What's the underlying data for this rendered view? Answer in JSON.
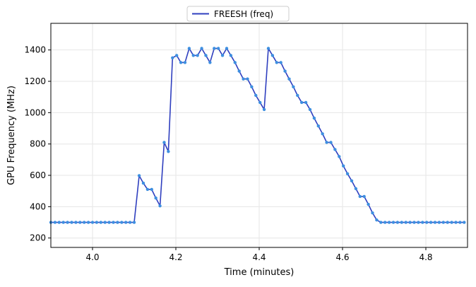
{
  "chart_data": {
    "type": "line",
    "title": "",
    "xlabel": "Time (minutes)",
    "ylabel": "GPU Frequency (MHz)",
    "xlim": [
      3.9,
      4.9
    ],
    "ylim": [
      140,
      1570
    ],
    "xticks": [
      4.0,
      4.2,
      4.4,
      4.6,
      4.8
    ],
    "xtick_labels": [
      "4.0",
      "4.2",
      "4.4",
      "4.6",
      "4.8"
    ],
    "yticks": [
      200,
      400,
      600,
      800,
      1000,
      1200,
      1400
    ],
    "ytick_labels": [
      "200",
      "400",
      "600",
      "800",
      "1000",
      "1200",
      "1400"
    ],
    "grid": true,
    "legend_position": "top-center",
    "colors": {
      "line": "#2f3fbf",
      "marker": "#3d8fe0"
    },
    "series": [
      {
        "name": "FREESH (freq)",
        "points": [
          [
            3.9,
            300
          ],
          [
            3.91,
            300
          ],
          [
            3.92,
            300
          ],
          [
            3.93,
            300
          ],
          [
            3.94,
            300
          ],
          [
            3.95,
            300
          ],
          [
            3.96,
            300
          ],
          [
            3.97,
            300
          ],
          [
            3.98,
            300
          ],
          [
            3.99,
            300
          ],
          [
            4.0,
            300
          ],
          [
            4.01,
            300
          ],
          [
            4.02,
            300
          ],
          [
            4.03,
            300
          ],
          [
            4.04,
            300
          ],
          [
            4.05,
            300
          ],
          [
            4.06,
            300
          ],
          [
            4.07,
            300
          ],
          [
            4.08,
            300
          ],
          [
            4.09,
            300
          ],
          [
            4.1,
            300
          ],
          [
            4.112,
            598
          ],
          [
            4.122,
            550
          ],
          [
            4.132,
            510
          ],
          [
            4.142,
            510
          ],
          [
            4.152,
            455
          ],
          [
            4.162,
            405
          ],
          [
            4.172,
            810
          ],
          [
            4.182,
            752
          ],
          [
            4.192,
            1350
          ],
          [
            4.202,
            1365
          ],
          [
            4.212,
            1320
          ],
          [
            4.222,
            1320
          ],
          [
            4.232,
            1410
          ],
          [
            4.242,
            1365
          ],
          [
            4.252,
            1365
          ],
          [
            4.262,
            1410
          ],
          [
            4.272,
            1365
          ],
          [
            4.282,
            1320
          ],
          [
            4.292,
            1410
          ],
          [
            4.302,
            1410
          ],
          [
            4.312,
            1365
          ],
          [
            4.322,
            1410
          ],
          [
            4.332,
            1365
          ],
          [
            4.342,
            1320
          ],
          [
            4.352,
            1265
          ],
          [
            4.362,
            1215
          ],
          [
            4.372,
            1215
          ],
          [
            4.382,
            1165
          ],
          [
            4.392,
            1110
          ],
          [
            4.402,
            1065
          ],
          [
            4.412,
            1020
          ],
          [
            4.422,
            1410
          ],
          [
            4.432,
            1365
          ],
          [
            4.442,
            1320
          ],
          [
            4.452,
            1320
          ],
          [
            4.462,
            1265
          ],
          [
            4.472,
            1215
          ],
          [
            4.482,
            1165
          ],
          [
            4.492,
            1110
          ],
          [
            4.502,
            1065
          ],
          [
            4.512,
            1065
          ],
          [
            4.522,
            1020
          ],
          [
            4.532,
            965
          ],
          [
            4.542,
            915
          ],
          [
            4.552,
            865
          ],
          [
            4.562,
            810
          ],
          [
            4.572,
            810
          ],
          [
            4.582,
            765
          ],
          [
            4.592,
            720
          ],
          [
            4.602,
            660
          ],
          [
            4.612,
            610
          ],
          [
            4.622,
            565
          ],
          [
            4.632,
            515
          ],
          [
            4.642,
            465
          ],
          [
            4.652,
            465
          ],
          [
            4.662,
            415
          ],
          [
            4.672,
            360
          ],
          [
            4.682,
            315
          ],
          [
            4.692,
            300
          ],
          [
            4.702,
            300
          ],
          [
            4.712,
            300
          ],
          [
            4.722,
            300
          ],
          [
            4.732,
            300
          ],
          [
            4.742,
            300
          ],
          [
            4.752,
            300
          ],
          [
            4.762,
            300
          ],
          [
            4.772,
            300
          ],
          [
            4.782,
            300
          ],
          [
            4.792,
            300
          ],
          [
            4.802,
            300
          ],
          [
            4.812,
            300
          ],
          [
            4.822,
            300
          ],
          [
            4.832,
            300
          ],
          [
            4.842,
            300
          ],
          [
            4.852,
            300
          ],
          [
            4.862,
            300
          ],
          [
            4.872,
            300
          ],
          [
            4.882,
            300
          ],
          [
            4.892,
            300
          ]
        ]
      }
    ]
  }
}
